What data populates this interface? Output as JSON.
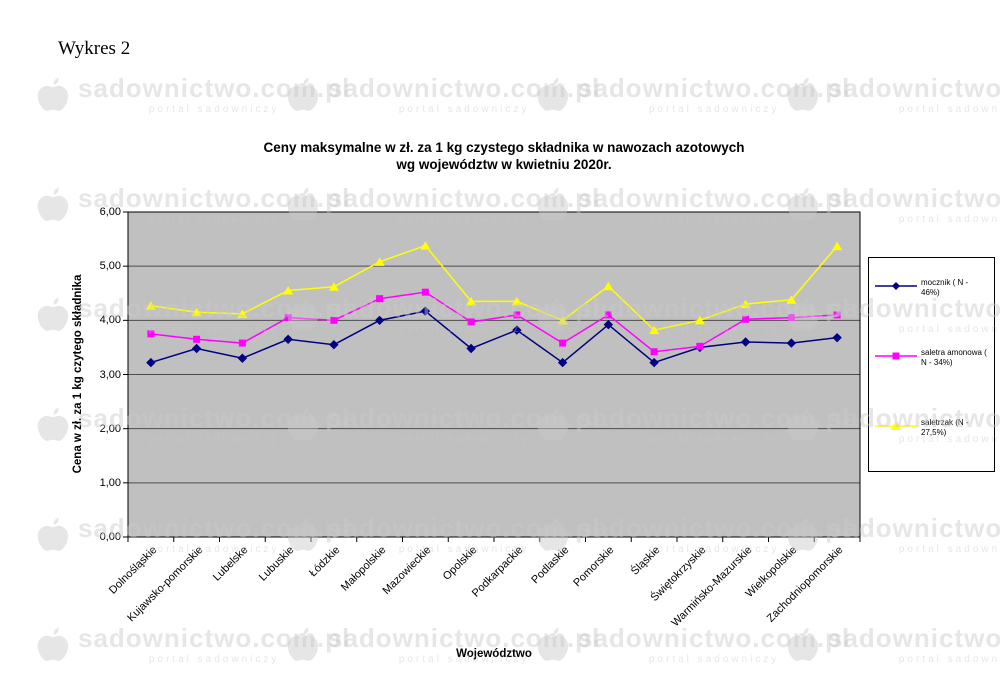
{
  "page": {
    "figure_label": "Wykres 2",
    "watermark": {
      "text": "sadownictwo.com.pl",
      "subtext": "portal sadowniczy"
    }
  },
  "chart_data": {
    "type": "line",
    "title_line1": "Ceny maksymalne w zł. za 1 kg czystego składnika w nawozach azotowych",
    "title_line2": "wg województw w kwietniu  2020r.",
    "xlabel": "Województwo",
    "ylabel": "Cena w zł. za 1 kg czytego składnika",
    "ylim": [
      0,
      6
    ],
    "ytick_step": 1,
    "ytick_labels": [
      "0,00",
      "1,00",
      "2,00",
      "3,00",
      "4,00",
      "5,00",
      "6,00"
    ],
    "grid": true,
    "plot_bg": "#C0C0C0",
    "gridline_color": "#4d4d4d",
    "legend_position": "right",
    "categories": [
      "Dolnośląskie",
      "Kujawsko-pomorskie",
      "Lubelske",
      "Lubuskie",
      "Łódzkie",
      "Małopolskie",
      "Mazowieckie",
      "Opolskie",
      "Podkarpackie",
      "Podlaskie",
      "Pomorskie",
      "Śląskie",
      "Świętokrzyskie",
      "Warmińsko-Mazurskie",
      "Wielkopolskie",
      "Zachodniopomorskie"
    ],
    "series": [
      {
        "name": "mocznik",
        "legend_label": "mocznik ( N - 46%)",
        "color": "#000080",
        "marker": "diamond",
        "values": [
          3.22,
          3.48,
          3.3,
          3.65,
          3.55,
          4.0,
          4.17,
          3.48,
          3.82,
          3.22,
          3.92,
          3.22,
          3.5,
          3.6,
          3.58,
          3.68
        ]
      },
      {
        "name": "saletra amonowa",
        "legend_label": "saletra amonowa ( N - 34%)",
        "color": "#FF00FF",
        "marker": "square",
        "values": [
          3.75,
          3.65,
          3.58,
          4.05,
          4.0,
          4.4,
          4.52,
          3.97,
          4.1,
          3.58,
          4.1,
          3.42,
          3.52,
          4.02,
          4.05,
          4.1
        ]
      },
      {
        "name": "saletrzak",
        "legend_label": "saletrzak (N - 27,5%)",
        "color": "#FFFF00",
        "marker": "triangle",
        "values": [
          4.27,
          4.15,
          4.12,
          4.55,
          4.62,
          5.08,
          5.38,
          4.35,
          4.35,
          4.0,
          4.63,
          3.82,
          4.0,
          4.3,
          4.38,
          5.37
        ]
      }
    ]
  }
}
